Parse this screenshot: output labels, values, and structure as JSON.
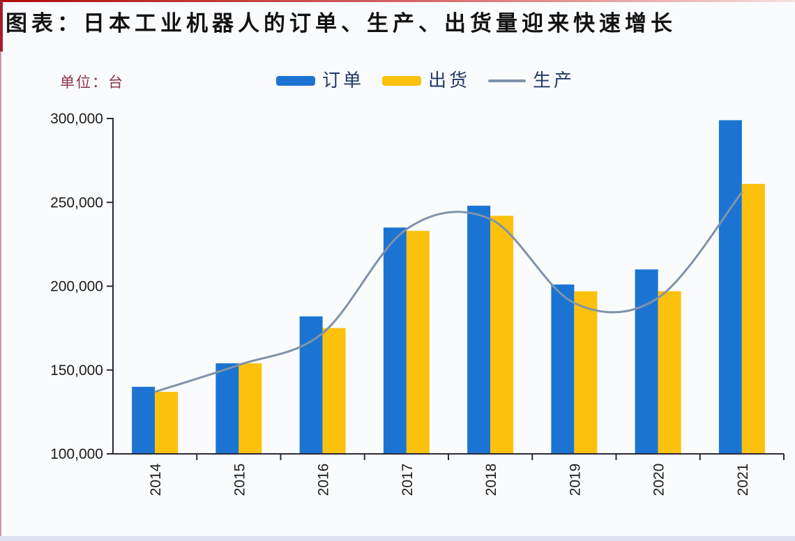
{
  "header": {
    "title": "图表：日本工业机器人的订单、生产、出货量迎来快速增长",
    "unit_label": "单位：台"
  },
  "legend": {
    "items": [
      {
        "label": "订单",
        "swatch": "bar",
        "color": "#1b74d1"
      },
      {
        "label": "出货",
        "swatch": "bar",
        "color": "#fcc10d"
      },
      {
        "label": "生产",
        "swatch": "line",
        "color": "#7e93aa"
      }
    ]
  },
  "chart_data": {
    "type": "bar",
    "subtype": "grouped bars with smoothed line overlay",
    "categories": [
      "2014",
      "2015",
      "2016",
      "2017",
      "2018",
      "2019",
      "2020",
      "2021"
    ],
    "series": [
      {
        "name": "订单",
        "type": "bar",
        "color": "#1b74d1",
        "values": [
          140000,
          154000,
          182000,
          235000,
          248000,
          201000,
          210000,
          299000
        ]
      },
      {
        "name": "出货",
        "type": "bar",
        "color": "#fcc10d",
        "values": [
          137000,
          154000,
          175000,
          233000,
          242000,
          197000,
          197000,
          261000
        ]
      },
      {
        "name": "生产",
        "type": "line",
        "color": "#7e93aa",
        "values": [
          137000,
          153000,
          172000,
          234000,
          240000,
          190000,
          193000,
          256000
        ]
      }
    ],
    "title": "图表：日本工业机器人的订单、生产、出货量迎来快速增长",
    "xlabel": "",
    "ylabel": "单位：台",
    "ylim": [
      100000,
      300000
    ],
    "ytick_interval": 50000,
    "ytick_labels": [
      "100,000",
      "150,000",
      "200,000",
      "250,000",
      "300,000"
    ],
    "grid": false,
    "legend_position": "top"
  },
  "colors": {
    "axis": "#2a2a3a",
    "axis_label": "#1c1c1c",
    "unit_text": "#8e3448",
    "legend_text": "#1f3a68",
    "red_border": "#a81f2d",
    "background": "#fafbfd",
    "bottom_strip": "#dce3ee"
  }
}
